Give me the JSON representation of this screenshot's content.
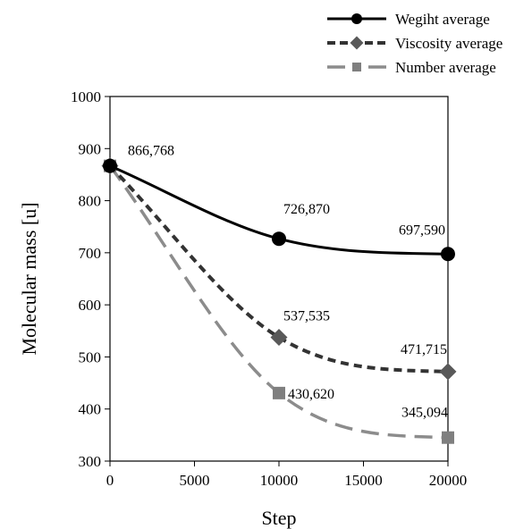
{
  "chart_data": {
    "type": "line",
    "title": "",
    "xlabel": "Step",
    "ylabel": "Molecular mass [u]",
    "xlim": [
      0,
      20000
    ],
    "ylim": [
      300,
      1000
    ],
    "xticks": [
      0,
      5000,
      10000,
      15000,
      20000
    ],
    "yticks": [
      300,
      400,
      500,
      600,
      700,
      800,
      900,
      1000
    ],
    "grid": false,
    "legend_position": "top-right",
    "x": [
      0,
      10000,
      20000
    ],
    "series": [
      {
        "name": "Wegiht average",
        "values": [
          866.768,
          726.87,
          697.59
        ],
        "labels": [
          "866,768",
          "726,870",
          "697,590"
        ],
        "marker": "circle",
        "line_style": "solid",
        "color": "#000000"
      },
      {
        "name": "Viscosity average",
        "values": [
          866.768,
          537.535,
          471.715
        ],
        "labels": [
          "",
          "537,535",
          "471,715"
        ],
        "marker": "diamond",
        "line_style": "dashed",
        "color": "#333333",
        "marker_color": "#595959"
      },
      {
        "name": "Number average",
        "values": [
          866.768,
          430.62,
          345.094
        ],
        "labels": [
          "",
          "430,620",
          "345,094"
        ],
        "marker": "square",
        "line_style": "long-dash",
        "color": "#8c8c8c",
        "marker_color": "#7f7f7f"
      }
    ]
  }
}
